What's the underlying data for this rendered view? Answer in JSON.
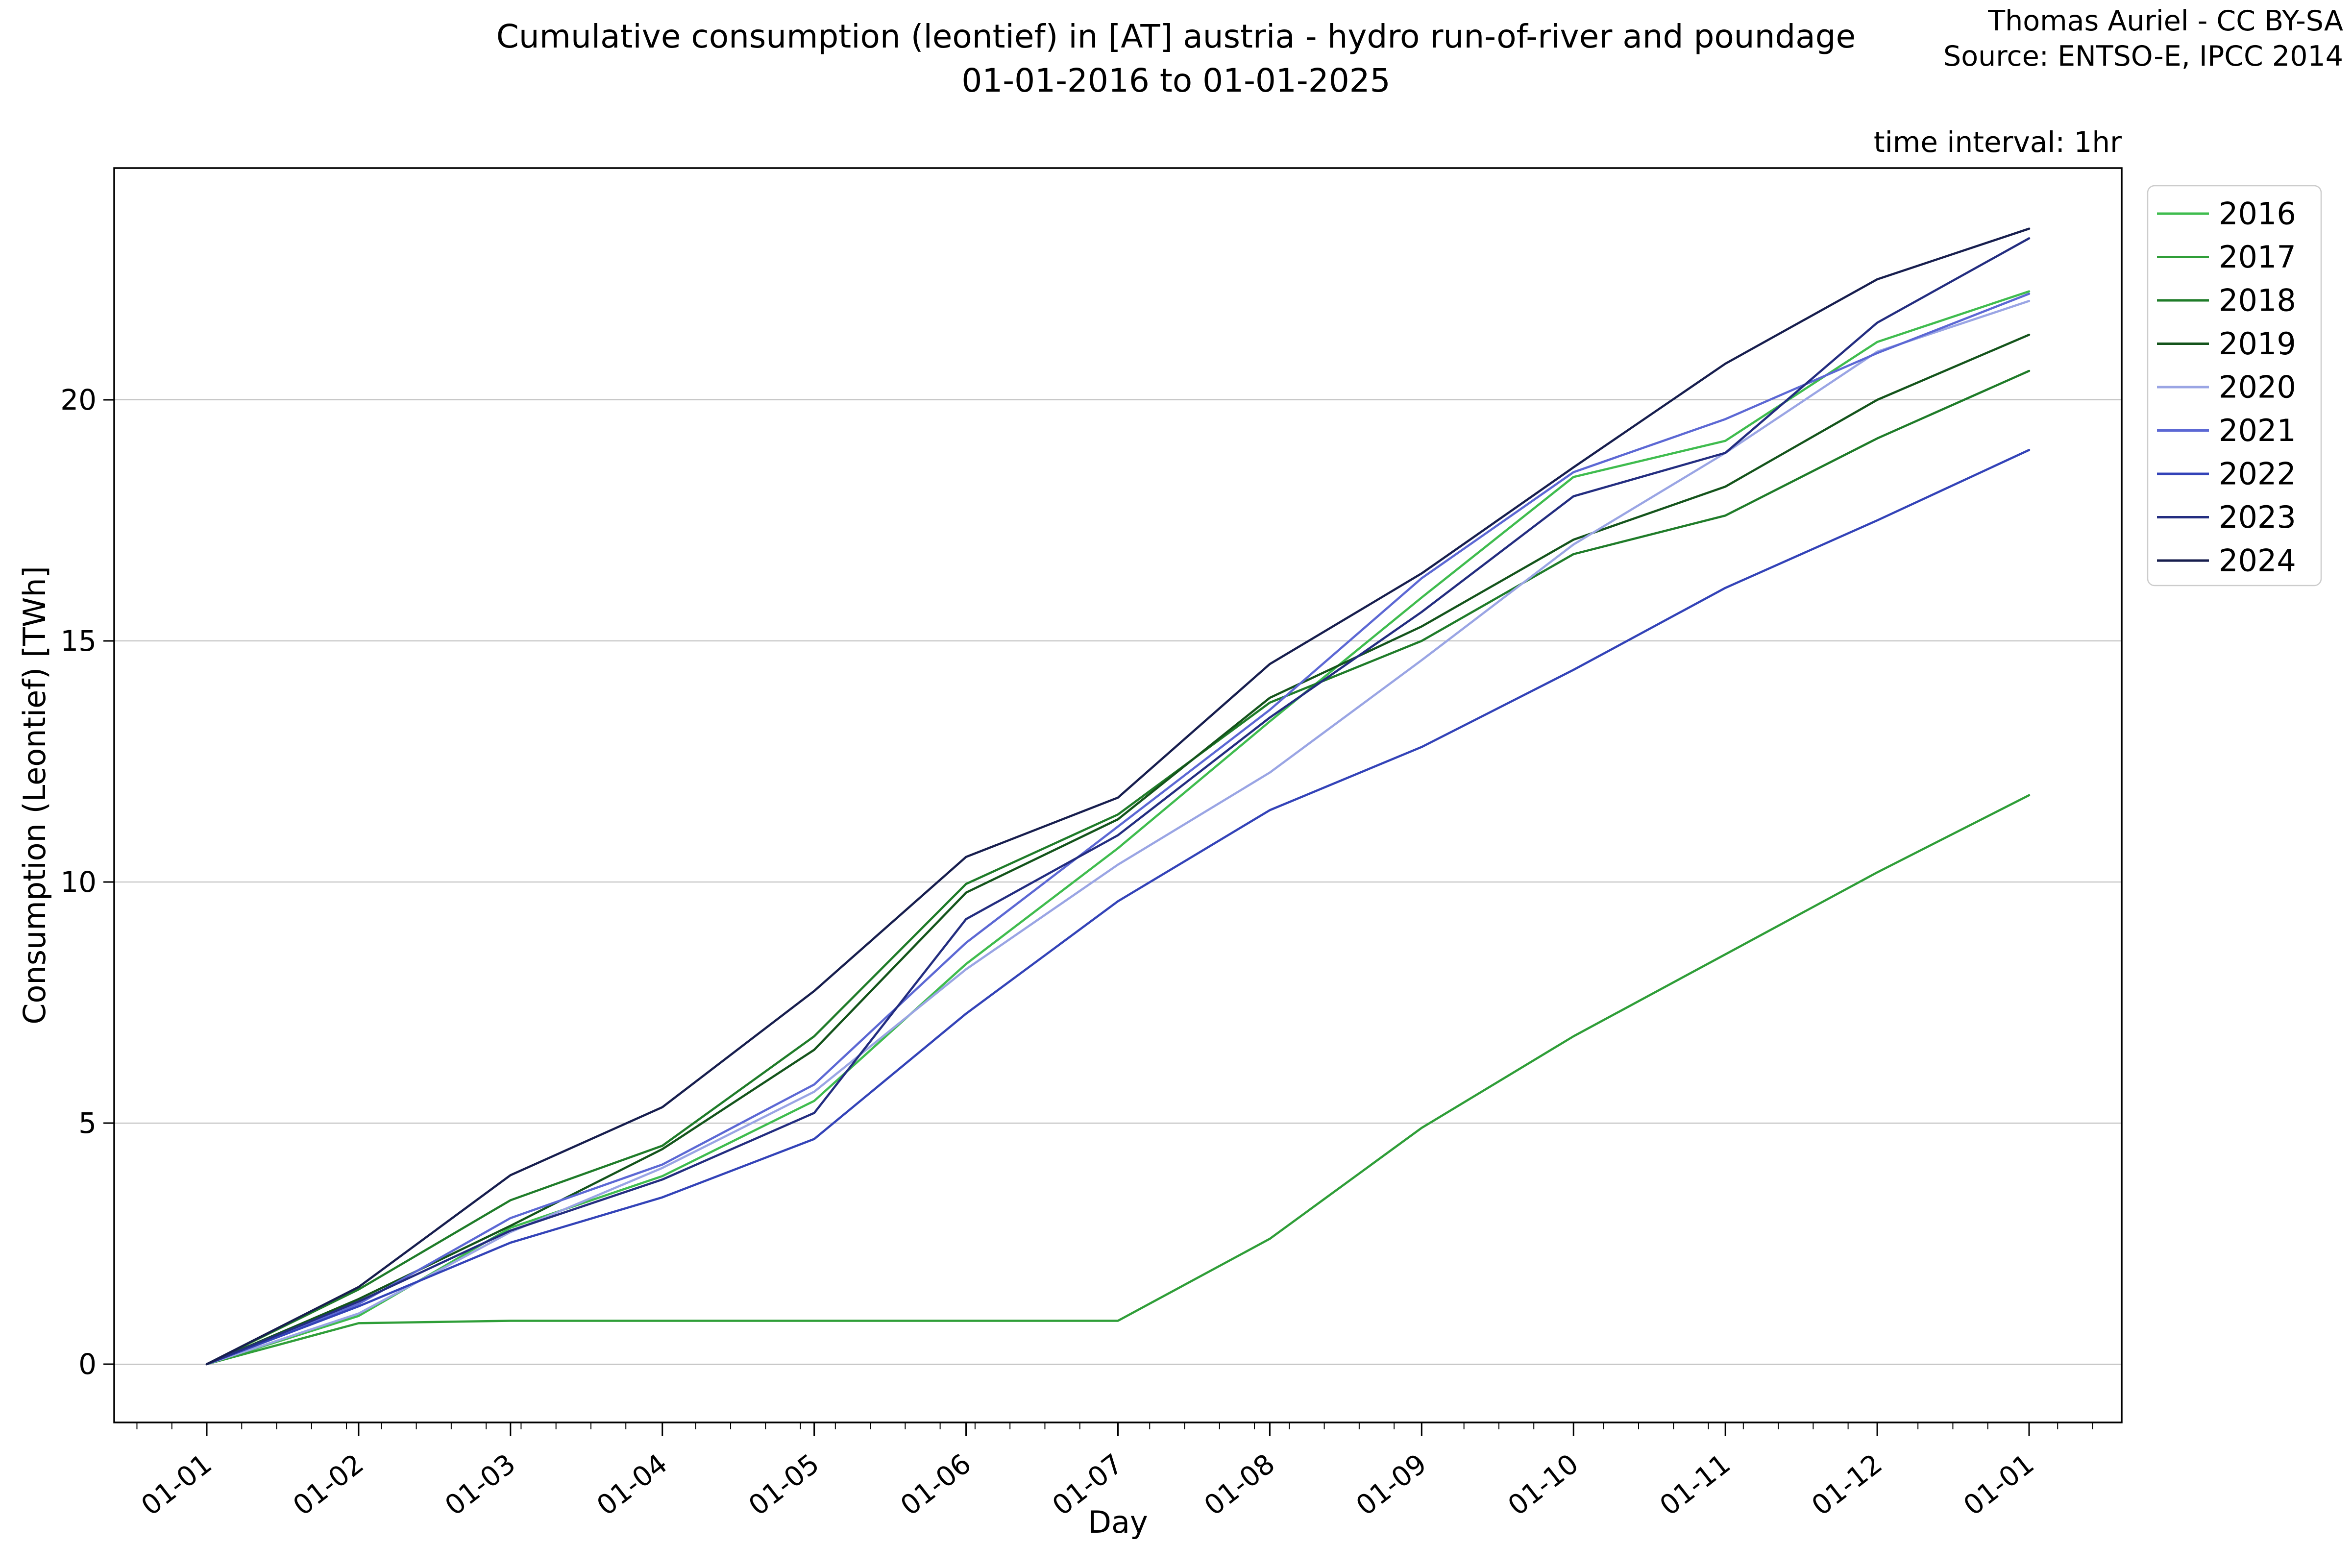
{
  "header": {
    "title_line1": "Cumulative consumption (leontief) in [AT] austria - hydro run-of-river and poundage",
    "title_line2": "01-01-2016 to 01-01-2025",
    "credit": "Thomas Auriel - CC BY-SA",
    "source": "Source: ENTSO-E, IPCC 2014",
    "time_interval": "time interval: 1hr"
  },
  "chart_data": {
    "type": "line",
    "title": "Cumulative consumption (leontief) in [AT] austria - hydro run-of-river and poundage 01-01-2016 to 01-01-2025",
    "xlabel": "Day",
    "ylabel": "Consumption (Leontief) [TWh]",
    "x_tick_labels": [
      "01-01",
      "01-02",
      "01-03",
      "01-04",
      "01-05",
      "01-06",
      "01-07",
      "01-08",
      "01-09",
      "01-10",
      "01-11",
      "01-12",
      "01-01"
    ],
    "y_ticks": [
      0,
      5,
      10,
      15,
      20
    ],
    "ylim": [
      -1.2,
      24.8
    ],
    "grid": "horizontal",
    "grid_color": "#bbbbbb",
    "axis_color": "#000000",
    "legend_position": "upper-right-outside",
    "legend_border_color": "#cccccc",
    "series": [
      {
        "name": "2016",
        "color": "#3fbc4e",
        "values": [
          0,
          1.0,
          2.83,
          3.9,
          5.46,
          8.3,
          10.7,
          13.33,
          15.9,
          18.4,
          19.15,
          21.2,
          22.25
        ]
      },
      {
        "name": "2017",
        "color": "#2f9e38",
        "values": [
          0,
          0.85,
          0.9,
          0.9,
          0.9,
          0.9,
          0.9,
          2.6,
          4.9,
          6.8,
          8.5,
          10.2,
          11.8
        ]
      },
      {
        "name": "2018",
        "color": "#1f7c29",
        "values": [
          0,
          1.55,
          3.4,
          4.53,
          6.8,
          9.96,
          11.4,
          13.72,
          15.0,
          16.8,
          17.6,
          19.2,
          20.6
        ]
      },
      {
        "name": "2019",
        "color": "#14541b",
        "values": [
          0,
          1.35,
          2.87,
          4.46,
          6.52,
          9.78,
          11.3,
          13.82,
          15.3,
          17.1,
          18.2,
          20.0,
          21.35
        ]
      },
      {
        "name": "2020",
        "color": "#9aa5e4",
        "values": [
          0,
          1.05,
          2.74,
          4.07,
          5.65,
          8.19,
          10.36,
          12.27,
          14.6,
          17.0,
          18.9,
          21.0,
          22.05
        ]
      },
      {
        "name": "2021",
        "color": "#5c68d4",
        "values": [
          0,
          1.25,
          3.03,
          4.14,
          5.8,
          8.74,
          11.15,
          13.57,
          16.3,
          18.5,
          19.6,
          20.97,
          22.2
        ]
      },
      {
        "name": "2022",
        "color": "#3343b8",
        "values": [
          0,
          1.2,
          2.52,
          3.46,
          4.67,
          7.27,
          9.6,
          11.49,
          12.8,
          14.4,
          16.1,
          17.5,
          18.96
        ]
      },
      {
        "name": "2023",
        "color": "#232d80",
        "values": [
          0,
          1.3,
          2.77,
          3.83,
          5.21,
          9.23,
          10.97,
          13.41,
          15.6,
          18.0,
          18.9,
          21.6,
          23.35
        ]
      },
      {
        "name": "2024",
        "color": "#171e4e",
        "values": [
          0,
          1.6,
          3.92,
          5.33,
          7.74,
          10.52,
          11.75,
          14.52,
          16.4,
          18.6,
          20.75,
          22.5,
          23.55
        ]
      }
    ]
  }
}
